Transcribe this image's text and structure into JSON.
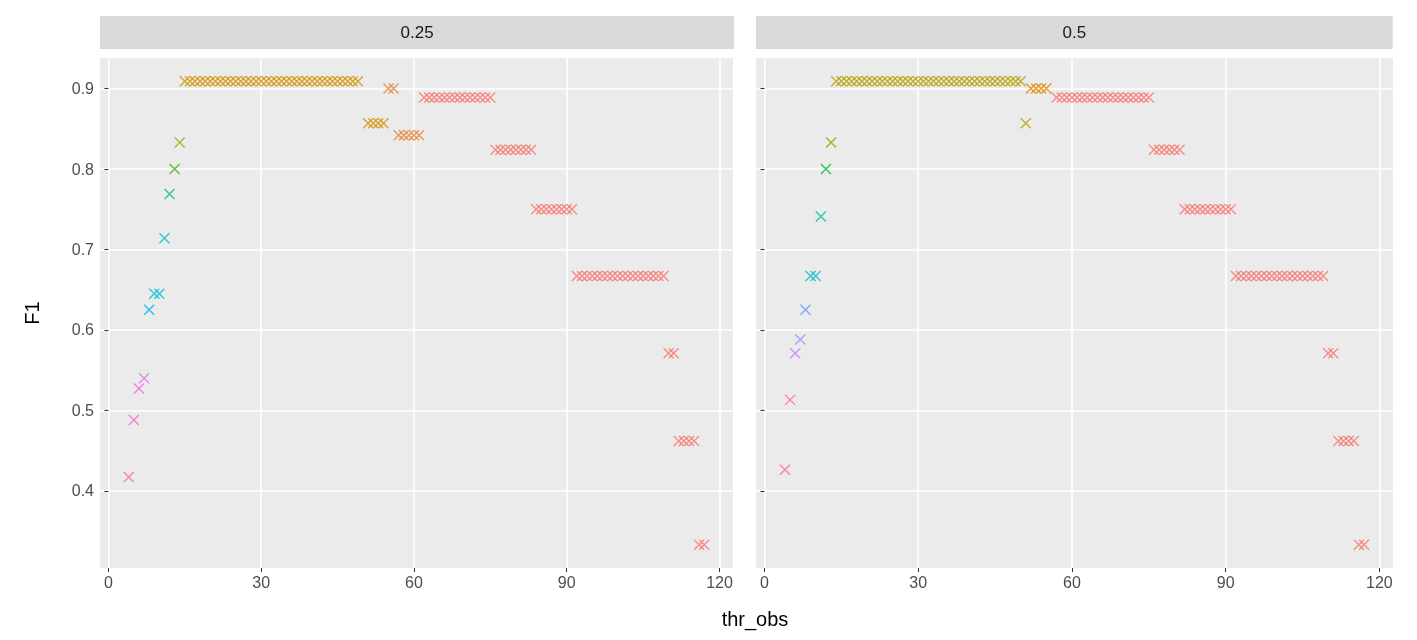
{
  "chart_data": [
    {
      "type": "scatter",
      "title": "0.25",
      "xlabel": "thr_obs",
      "ylabel": "F1",
      "marker": "cross",
      "grid": true,
      "xlim": [
        -1.65,
        122.65
      ],
      "ylim": [
        0.304,
        0.938
      ],
      "xticks": [
        0,
        30,
        60,
        90,
        120
      ],
      "yticks": [
        0.4,
        0.5,
        0.6,
        0.7,
        0.8,
        0.9
      ],
      "series": [
        {
          "color": "#ff6a98",
          "x": [
            4
          ],
          "values": [
            0.417
          ]
        },
        {
          "color": "#ff61c9",
          "x": [
            5
          ],
          "values": [
            0.488
          ]
        },
        {
          "color": "#f564e3",
          "x": [
            6
          ],
          "values": [
            0.527
          ]
        },
        {
          "color": "#e76bf3",
          "x": [
            7
          ],
          "values": [
            0.54
          ]
        },
        {
          "color": "#00b0f6",
          "x": [
            8
          ],
          "values": [
            0.625
          ]
        },
        {
          "color": "#00bcd8",
          "x": [
            9,
            10
          ],
          "values": [
            0.645,
            0.645
          ]
        },
        {
          "color": "#00bfc4",
          "x": [
            11
          ],
          "values": [
            0.714
          ]
        },
        {
          "color": "#00c08b",
          "x": [
            12
          ],
          "values": [
            0.769
          ]
        },
        {
          "color": "#39b600",
          "x": [
            13
          ],
          "values": [
            0.8
          ]
        },
        {
          "color": "#9ca700",
          "x": [
            14
          ],
          "values": [
            0.833
          ]
        },
        {
          "color": "#d39200",
          "x": [
            15,
            16,
            17,
            18,
            19,
            20,
            21,
            22,
            23,
            24,
            25,
            26,
            27,
            28,
            29,
            30,
            31,
            32,
            33,
            34,
            35,
            36,
            37,
            38,
            39,
            40,
            41,
            42,
            43,
            44,
            45,
            46,
            47,
            48,
            49,
            51,
            52,
            53,
            54
          ],
          "values": [
            0.909,
            0.909,
            0.909,
            0.909,
            0.909,
            0.909,
            0.909,
            0.909,
            0.909,
            0.909,
            0.909,
            0.909,
            0.909,
            0.909,
            0.909,
            0.909,
            0.909,
            0.909,
            0.909,
            0.909,
            0.909,
            0.909,
            0.909,
            0.909,
            0.909,
            0.909,
            0.909,
            0.909,
            0.909,
            0.909,
            0.909,
            0.909,
            0.909,
            0.909,
            0.909,
            0.857,
            0.857,
            0.857,
            0.857
          ]
        },
        {
          "color": "#ea8331",
          "x": [
            55,
            56,
            57,
            58,
            59,
            60,
            61
          ],
          "values": [
            0.9,
            0.9,
            0.842,
            0.842,
            0.842,
            0.842,
            0.842
          ]
        },
        {
          "color": "#f8766d",
          "x": [
            62,
            63,
            64,
            65,
            66,
            67,
            68,
            69,
            70,
            71,
            72,
            73,
            74,
            75,
            76,
            77,
            78,
            79,
            80,
            81,
            82,
            83,
            84,
            85,
            86,
            87,
            88,
            89,
            90,
            91,
            92,
            93,
            94,
            95,
            96,
            97,
            98,
            99,
            100,
            101,
            102,
            103,
            104,
            105,
            106,
            107,
            108,
            109,
            110,
            111,
            112,
            113,
            114,
            115,
            116,
            117
          ],
          "values": [
            0.889,
            0.889,
            0.889,
            0.889,
            0.889,
            0.889,
            0.889,
            0.889,
            0.889,
            0.889,
            0.889,
            0.889,
            0.889,
            0.889,
            0.824,
            0.824,
            0.824,
            0.824,
            0.824,
            0.824,
            0.824,
            0.824,
            0.75,
            0.75,
            0.75,
            0.75,
            0.75,
            0.75,
            0.75,
            0.75,
            0.667,
            0.667,
            0.667,
            0.667,
            0.667,
            0.667,
            0.667,
            0.667,
            0.667,
            0.667,
            0.667,
            0.667,
            0.667,
            0.667,
            0.667,
            0.667,
            0.667,
            0.667,
            0.571,
            0.571,
            0.462,
            0.462,
            0.462,
            0.462,
            0.333,
            0.333
          ]
        }
      ]
    },
    {
      "type": "scatter",
      "title": "0.5",
      "marker": "cross",
      "grid": true,
      "tick_labels": "x",
      "xlim": [
        -1.65,
        122.65
      ],
      "ylim": [
        0.304,
        0.938
      ],
      "xticks": [
        0,
        30,
        60,
        90,
        120
      ],
      "yticks": [
        0.4,
        0.5,
        0.6,
        0.7,
        0.8,
        0.9
      ],
      "series": [
        {
          "color": "#ff6a98",
          "x": [
            4
          ],
          "values": [
            0.426
          ]
        },
        {
          "color": "#ff62bc",
          "x": [
            5
          ],
          "values": [
            0.513
          ]
        },
        {
          "color": "#c77cff",
          "x": [
            6
          ],
          "values": [
            0.571
          ]
        },
        {
          "color": "#9590ff",
          "x": [
            7
          ],
          "values": [
            0.588
          ]
        },
        {
          "color": "#619cff",
          "x": [
            8
          ],
          "values": [
            0.625
          ]
        },
        {
          "color": "#00bfc4",
          "x": [
            9,
            10
          ],
          "values": [
            0.667,
            0.667
          ]
        },
        {
          "color": "#00c19a",
          "x": [
            11
          ],
          "values": [
            0.741
          ]
        },
        {
          "color": "#00ba38",
          "x": [
            12
          ],
          "values": [
            0.8
          ]
        },
        {
          "color": "#7cae00",
          "x": [
            13
          ],
          "values": [
            0.833
          ]
        },
        {
          "color": "#b79f00",
          "x": [
            14,
            15,
            16,
            17,
            18,
            19,
            20,
            21,
            22,
            23,
            24,
            25,
            26,
            27,
            28,
            29,
            30,
            31,
            32,
            33,
            34,
            35,
            36,
            37,
            38,
            39,
            40,
            41,
            42,
            43,
            44,
            45,
            46,
            47,
            48,
            49,
            50,
            51
          ],
          "values": [
            0.909,
            0.909,
            0.909,
            0.909,
            0.909,
            0.909,
            0.909,
            0.909,
            0.909,
            0.909,
            0.909,
            0.909,
            0.909,
            0.909,
            0.909,
            0.909,
            0.909,
            0.909,
            0.909,
            0.909,
            0.909,
            0.909,
            0.909,
            0.909,
            0.909,
            0.909,
            0.909,
            0.909,
            0.909,
            0.909,
            0.909,
            0.909,
            0.909,
            0.909,
            0.909,
            0.909,
            0.909,
            0.857
          ]
        },
        {
          "color": "#e58700",
          "x": [
            52,
            53,
            54,
            55
          ],
          "values": [
            0.9,
            0.9,
            0.9,
            0.9
          ]
        },
        {
          "color": "#f8766d",
          "x": [
            57,
            58,
            59,
            60,
            61,
            62,
            63,
            64,
            65,
            66,
            67,
            68,
            69,
            70,
            71,
            72,
            73,
            74,
            75,
            76,
            77,
            78,
            79,
            80,
            81,
            82,
            83,
            84,
            85,
            86,
            87,
            88,
            89,
            90,
            91,
            92,
            93,
            94,
            95,
            96,
            97,
            98,
            99,
            100,
            101,
            102,
            103,
            104,
            105,
            106,
            107,
            108,
            109,
            110,
            111,
            112,
            113,
            114,
            115,
            116,
            117
          ],
          "values": [
            0.889,
            0.889,
            0.889,
            0.889,
            0.889,
            0.889,
            0.889,
            0.889,
            0.889,
            0.889,
            0.889,
            0.889,
            0.889,
            0.889,
            0.889,
            0.889,
            0.889,
            0.889,
            0.889,
            0.824,
            0.824,
            0.824,
            0.824,
            0.824,
            0.824,
            0.75,
            0.75,
            0.75,
            0.75,
            0.75,
            0.75,
            0.75,
            0.75,
            0.75,
            0.75,
            0.667,
            0.667,
            0.667,
            0.667,
            0.667,
            0.667,
            0.667,
            0.667,
            0.667,
            0.667,
            0.667,
            0.667,
            0.667,
            0.667,
            0.667,
            0.667,
            0.667,
            0.667,
            0.571,
            0.571,
            0.462,
            0.462,
            0.462,
            0.462,
            0.333,
            0.333
          ]
        }
      ]
    }
  ]
}
